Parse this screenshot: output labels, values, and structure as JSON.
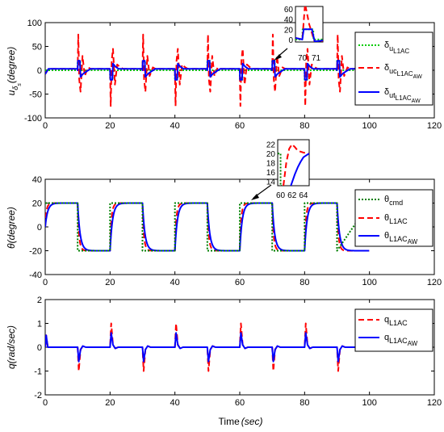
{
  "chart_data": [
    {
      "type": "line",
      "ylabel_main": "u",
      "ylabel_sub": "δ",
      "ylabel_subsub": "s",
      "ylabel_tail": "(degree)",
      "xlim": [
        0,
        120
      ],
      "ylim": [
        -100,
        100
      ],
      "xticks": [
        "0",
        "20",
        "40",
        "60",
        "80",
        "100",
        "120"
      ],
      "yticks": [
        "100",
        "50",
        "0",
        "-50",
        "-100"
      ],
      "grid": false,
      "legend_placement": "right",
      "series": [
        {
          "name": "δ",
          "name_sub": "u",
          "name_subsub": "L1AC",
          "color": "#00cc00",
          "style": "dotted",
          "description_points": "square pulses",
          "switch_times": [
            10,
            20,
            30,
            40,
            50,
            60,
            70,
            80,
            90
          ],
          "pulse_peak": 20,
          "pulse_width": 0.8
        },
        {
          "name": "δ",
          "name_sub": "uc",
          "name_subsub": "L1AC",
          "name_subsubsub": "AW",
          "color": "#ff0000",
          "style": "dashed",
          "switch_times": [
            10,
            20,
            30,
            40,
            50,
            60,
            70,
            80,
            90
          ],
          "spike_peak": 75,
          "base": 3
        },
        {
          "name": "δ",
          "name_sub": "ut",
          "name_subsub": "L1AC",
          "name_subsubsub": "AW",
          "color": "#0000ff",
          "style": "solid",
          "switch_times": [
            10,
            20,
            30,
            40,
            50,
            60,
            70,
            80,
            90
          ],
          "saturation": 20,
          "base": 3
        }
      ],
      "inset": {
        "xticks": [
          "70",
          "71"
        ],
        "yticks": [
          "60",
          "40",
          "20",
          "0"
        ],
        "xlim": [
          69.5,
          71.5
        ],
        "ylim": [
          -5,
          65
        ]
      }
    },
    {
      "type": "line",
      "ylabel": "θ(degree)",
      "xlim": [
        0,
        120
      ],
      "ylim": [
        -40,
        40
      ],
      "xticks": [
        "0",
        "20",
        "40",
        "60",
        "80",
        "100",
        "120"
      ],
      "yticks": [
        "40",
        "20",
        "0",
        "-20",
        "-40"
      ],
      "grid": false,
      "legend_placement": "right",
      "series": [
        {
          "name": "θ",
          "name_sub": "cmd",
          "color": "#008000",
          "style": "dotted",
          "amplitude": 20
        },
        {
          "name": "θ",
          "name_sub": "L1AC",
          "color": "#ff0000",
          "style": "dashed",
          "amplitude": 20,
          "overshoot": 2
        },
        {
          "name": "θ",
          "name_sub": "L1AC",
          "name_subsub": "AW",
          "color": "#0000ff",
          "style": "solid",
          "amplitude": 20
        }
      ],
      "switch_times": [
        10,
        20,
        30,
        40,
        50,
        60,
        70,
        80,
        90
      ],
      "end_time": 100,
      "inset": {
        "xticks": [
          "60",
          "62",
          "64"
        ],
        "yticks": [
          "22",
          "20",
          "18",
          "16",
          "14"
        ],
        "xlim": [
          59.5,
          65
        ],
        "ylim": [
          13,
          23
        ]
      }
    },
    {
      "type": "line",
      "ylabel": "q(rad/sec)",
      "xlabel_main": "Time",
      "xlabel_unit": "(sec)",
      "xlim": [
        0,
        120
      ],
      "ylim": [
        -2,
        2
      ],
      "xticks": [
        "0",
        "20",
        "40",
        "60",
        "80",
        "100",
        "120"
      ],
      "yticks": [
        "2",
        "1",
        "0",
        "-1",
        "-2"
      ],
      "grid": false,
      "legend_placement": "right",
      "series": [
        {
          "name": "q",
          "name_sub": "L1AC",
          "color": "#ff0000",
          "style": "dashed",
          "peak": 1.0
        },
        {
          "name": "q",
          "name_sub": "L1AC",
          "name_subsub": "AW",
          "color": "#0000ff",
          "style": "solid",
          "peak": 0.6
        }
      ],
      "switch_times": [
        10,
        20,
        30,
        40,
        50,
        60,
        70,
        80,
        90
      ],
      "initial_peak": 0.5
    }
  ]
}
